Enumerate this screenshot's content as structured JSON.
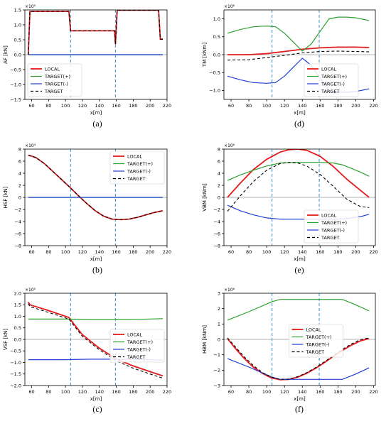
{
  "chart_data": [
    {
      "type": "line",
      "panel_label": "(a)",
      "xlabel": "x[m]",
      "ylabel": "AF [kN]",
      "y_multiplier": "×10⁵",
      "xlim": [
        52,
        220
      ],
      "ylim": [
        -1.5,
        1.5
      ],
      "xticks": [
        60,
        80,
        100,
        120,
        140,
        160,
        180,
        200,
        220
      ],
      "yticks": [
        -1.5,
        -1.0,
        -0.5,
        0.0,
        0.5,
        1.0,
        1.5
      ],
      "vlines": [
        106,
        159
      ],
      "legend": "lower-left",
      "series": [
        {
          "name": "LOCAL",
          "color": "#e41a1c",
          "dash": "",
          "x": [
            56,
            58,
            104,
            106,
            158,
            159,
            161,
            210,
            212,
            215
          ],
          "y": [
            0.0,
            1.45,
            1.45,
            0.8,
            0.8,
            0.35,
            1.49,
            1.49,
            0.52,
            0.52
          ]
        },
        {
          "name": "TARGET(+)",
          "color": "#2ca02c",
          "dash": "",
          "x": [
            56,
            215
          ],
          "y": [
            0.0,
            0.0
          ]
        },
        {
          "name": "TARGET(-)",
          "color": "#1f3fd6",
          "dash": "",
          "x": [
            56,
            215
          ],
          "y": [
            0.0,
            0.0
          ]
        },
        {
          "name": "TARGET",
          "color": "#000000",
          "dash": "4,3",
          "x": [
            56,
            58,
            104,
            106,
            158,
            159,
            161,
            210,
            212,
            215
          ],
          "y": [
            0.0,
            1.45,
            1.45,
            0.8,
            0.8,
            0.35,
            1.49,
            1.49,
            0.52,
            0.52
          ]
        }
      ]
    },
    {
      "type": "line",
      "panel_label": "(d)",
      "xlabel": "x[m]",
      "ylabel": "TM [kNm]",
      "y_multiplier": "×10⁶",
      "xlim": [
        52,
        222
      ],
      "ylim": [
        -1.25,
        1.25
      ],
      "xticks": [
        60,
        80,
        100,
        120,
        140,
        160,
        180,
        200,
        220
      ],
      "yticks": [
        -1.0,
        -0.5,
        0.0,
        0.5,
        1.0
      ],
      "vlines": [
        106,
        159
      ],
      "legend": "lower-right",
      "series": [
        {
          "name": "LOCAL",
          "color": "#e41a1c",
          "dash": "",
          "x": [
            56,
            80,
            100,
            120,
            140,
            160,
            180,
            200,
            215
          ],
          "y": [
            0.0,
            0.0,
            0.03,
            0.09,
            0.15,
            0.19,
            0.21,
            0.21,
            0.2
          ]
        },
        {
          "name": "TARGET(+)",
          "color": "#2ca02c",
          "dash": "",
          "x": [
            56,
            70,
            85,
            100,
            110,
            120,
            130,
            140,
            150,
            160,
            170,
            180,
            190,
            200,
            210,
            215
          ],
          "y": [
            0.6,
            0.7,
            0.78,
            0.8,
            0.78,
            0.6,
            0.35,
            0.1,
            0.3,
            0.65,
            1.0,
            1.05,
            1.05,
            1.03,
            0.98,
            0.95
          ]
        },
        {
          "name": "TARGET(-)",
          "color": "#1f3fd6",
          "dash": "",
          "x": [
            56,
            70,
            85,
            100,
            110,
            120,
            130,
            140,
            150,
            160,
            170,
            180,
            190,
            200,
            210,
            215
          ],
          "y": [
            -0.6,
            -0.7,
            -0.78,
            -0.8,
            -0.78,
            -0.6,
            -0.35,
            -0.1,
            -0.3,
            -0.65,
            -1.0,
            -1.05,
            -1.05,
            -1.03,
            -0.98,
            -0.95
          ]
        },
        {
          "name": "TARGET",
          "color": "#000000",
          "dash": "4,3",
          "x": [
            56,
            80,
            100,
            120,
            140,
            160,
            180,
            200,
            215
          ],
          "y": [
            -0.15,
            -0.14,
            -0.08,
            -0.02,
            0.05,
            0.09,
            0.1,
            0.09,
            0.08
          ]
        }
      ]
    },
    {
      "type": "line",
      "panel_label": "(b)",
      "xlabel": "x[m]",
      "ylabel": "HSF [kN]",
      "y_multiplier": "×10⁴",
      "xlim": [
        52,
        220
      ],
      "ylim": [
        -8,
        8
      ],
      "xticks": [
        60,
        80,
        100,
        120,
        140,
        160,
        180,
        200,
        220
      ],
      "yticks": [
        -8,
        -6,
        -4,
        -2,
        0,
        2,
        4,
        6,
        8
      ],
      "vlines": [
        106,
        159
      ],
      "legend": "top-right",
      "series": [
        {
          "name": "LOCAL",
          "color": "#e41a1c",
          "dash": "",
          "x": [
            56,
            65,
            75,
            85,
            95,
            105,
            115,
            125,
            135,
            145,
            155,
            165,
            175,
            185,
            195,
            205,
            215
          ],
          "y": [
            7.0,
            6.6,
            5.6,
            4.3,
            3.0,
            1.7,
            0.3,
            -1.0,
            -2.2,
            -3.1,
            -3.6,
            -3.7,
            -3.6,
            -3.3,
            -2.9,
            -2.5,
            -2.2
          ]
        },
        {
          "name": "TARGET(+)",
          "color": "#2ca02c",
          "dash": "",
          "x": [
            56,
            215
          ],
          "y": [
            0.0,
            0.0
          ]
        },
        {
          "name": "TARGET(-)",
          "color": "#1f3fd6",
          "dash": "",
          "x": [
            56,
            215
          ],
          "y": [
            0.0,
            0.0
          ]
        },
        {
          "name": "TARGET",
          "color": "#000000",
          "dash": "4,3",
          "x": [
            56,
            65,
            75,
            85,
            95,
            105,
            115,
            125,
            135,
            145,
            155,
            165,
            175,
            185,
            195,
            205,
            215
          ],
          "y": [
            7.0,
            6.6,
            5.6,
            4.3,
            3.0,
            1.7,
            0.3,
            -1.0,
            -2.2,
            -3.1,
            -3.6,
            -3.7,
            -3.6,
            -3.3,
            -2.9,
            -2.5,
            -2.2
          ]
        }
      ]
    },
    {
      "type": "line",
      "panel_label": "(e)",
      "xlabel": "x[m]",
      "ylabel": "VBM [kNm]",
      "y_multiplier": "×10⁶",
      "xlim": [
        52,
        222
      ],
      "ylim": [
        -8,
        8
      ],
      "xticks": [
        60,
        80,
        100,
        120,
        140,
        160,
        180,
        200,
        220
      ],
      "yticks": [
        -8,
        -6,
        -4,
        -2,
        0,
        2,
        4,
        6,
        8
      ],
      "vlines": [
        106,
        159
      ],
      "legend": "lower-right",
      "series": [
        {
          "name": "LOCAL",
          "color": "#e41a1c",
          "dash": "",
          "x": [
            56,
            70,
            85,
            100,
            115,
            125,
            135,
            145,
            160,
            175,
            190,
            205,
            215
          ],
          "y": [
            0.0,
            2.3,
            4.6,
            6.3,
            7.5,
            7.9,
            8.0,
            7.8,
            6.8,
            5.1,
            3.0,
            1.2,
            0.0
          ]
        },
        {
          "name": "TARGET(+)",
          "color": "#2ca02c",
          "dash": "",
          "x": [
            56,
            70,
            85,
            100,
            115,
            130,
            145,
            160,
            175,
            185,
            195,
            205,
            215
          ],
          "y": [
            2.8,
            3.7,
            4.5,
            5.2,
            5.7,
            5.8,
            5.8,
            5.8,
            5.7,
            5.4,
            4.8,
            4.2,
            3.5
          ]
        },
        {
          "name": "TARGET(-)",
          "color": "#1f3fd6",
          "dash": "",
          "x": [
            56,
            70,
            85,
            100,
            115,
            130,
            145,
            160,
            175,
            190,
            205,
            215
          ],
          "y": [
            -1.3,
            -2.2,
            -2.9,
            -3.4,
            -3.6,
            -3.6,
            -3.6,
            -3.6,
            -3.6,
            -3.5,
            -3.2,
            -2.8
          ]
        },
        {
          "name": "TARGET",
          "color": "#000000",
          "dash": "4,3",
          "x": [
            56,
            70,
            85,
            100,
            115,
            125,
            135,
            145,
            160,
            175,
            190,
            205,
            215
          ],
          "y": [
            -2.3,
            0.2,
            2.6,
            4.5,
            5.6,
            5.8,
            5.7,
            5.2,
            3.8,
            1.8,
            -0.3,
            -1.5,
            -1.7
          ]
        }
      ]
    },
    {
      "type": "line",
      "panel_label": "(c)",
      "xlabel": "x[m]",
      "ylabel": "VSF [kN]",
      "y_multiplier": "×10⁵",
      "xlim": [
        52,
        220
      ],
      "ylim": [
        -2.0,
        2.0
      ],
      "xticks": [
        60,
        80,
        100,
        120,
        140,
        160,
        180,
        200,
        220
      ],
      "yticks": [
        -2.0,
        -1.5,
        -1.0,
        -0.5,
        0.0,
        0.5,
        1.0,
        1.5,
        2.0
      ],
      "vlines": [
        106,
        159
      ],
      "legend": "right",
      "series": [
        {
          "name": "LOCAL",
          "color": "#e41a1c",
          "dash": "",
          "x": [
            56,
            58,
            80,
            104,
            106,
            120,
            140,
            160,
            180,
            200,
            215
          ],
          "y": [
            1.62,
            1.5,
            1.25,
            0.95,
            0.85,
            0.2,
            -0.38,
            -0.85,
            -1.15,
            -1.4,
            -1.58
          ]
        },
        {
          "name": "TARGET(+)",
          "color": "#2ca02c",
          "dash": "",
          "x": [
            56,
            100,
            130,
            160,
            190,
            215
          ],
          "y": [
            0.88,
            0.88,
            0.86,
            0.86,
            0.87,
            0.9
          ]
        },
        {
          "name": "TARGET(-)",
          "color": "#1f3fd6",
          "dash": "",
          "x": [
            56,
            100,
            130,
            160,
            190,
            215
          ],
          "y": [
            -0.88,
            -0.88,
            -0.86,
            -0.86,
            -0.87,
            -0.9
          ]
        },
        {
          "name": "TARGET",
          "color": "#000000",
          "dash": "4,3",
          "x": [
            56,
            58,
            80,
            104,
            106,
            120,
            140,
            160,
            180,
            200,
            215
          ],
          "y": [
            1.55,
            1.42,
            1.17,
            0.88,
            0.78,
            0.13,
            -0.45,
            -0.93,
            -1.25,
            -1.5,
            -1.68
          ]
        }
      ]
    },
    {
      "type": "line",
      "panel_label": "(f)",
      "xlabel": "x[m]",
      "ylabel": "HBM [kNm]",
      "y_multiplier": "×10⁶",
      "xlim": [
        52,
        222
      ],
      "ylim": [
        -3,
        3
      ],
      "xticks": [
        60,
        80,
        100,
        120,
        140,
        160,
        180,
        200,
        220
      ],
      "yticks": [
        -3,
        -2,
        -1,
        0,
        1,
        2,
        3
      ],
      "vlines": [
        106,
        159
      ],
      "legend": "center",
      "series": [
        {
          "name": "LOCAL",
          "color": "#e41a1c",
          "dash": "",
          "x": [
            56,
            65,
            75,
            85,
            95,
            105,
            115,
            125,
            135,
            145,
            155,
            165,
            175,
            185,
            195,
            205,
            215
          ],
          "y": [
            0.05,
            -0.6,
            -1.25,
            -1.8,
            -2.2,
            -2.5,
            -2.62,
            -2.6,
            -2.45,
            -2.2,
            -1.88,
            -1.5,
            -1.1,
            -0.72,
            -0.38,
            -0.1,
            0.05
          ]
        },
        {
          "name": "TARGET(+)",
          "color": "#2ca02c",
          "dash": "",
          "x": [
            56,
            80,
            106,
            115,
            185,
            200,
            215
          ],
          "y": [
            1.25,
            1.8,
            2.45,
            2.6,
            2.6,
            2.25,
            1.85
          ]
        },
        {
          "name": "TARGET(-)",
          "color": "#1f3fd6",
          "dash": "",
          "x": [
            56,
            80,
            106,
            115,
            185,
            200,
            215
          ],
          "y": [
            -1.25,
            -1.8,
            -2.45,
            -2.6,
            -2.6,
            -2.25,
            -1.85
          ]
        },
        {
          "name": "TARGET",
          "color": "#000000",
          "dash": "4,3",
          "x": [
            56,
            65,
            75,
            85,
            95,
            105,
            115,
            125,
            135,
            145,
            155,
            165,
            175,
            185,
            195,
            205,
            215
          ],
          "y": [
            0.1,
            -0.5,
            -1.15,
            -1.7,
            -2.15,
            -2.45,
            -2.6,
            -2.58,
            -2.42,
            -2.16,
            -1.83,
            -1.45,
            -1.05,
            -0.65,
            -0.3,
            -0.02,
            0.1
          ]
        }
      ]
    }
  ]
}
